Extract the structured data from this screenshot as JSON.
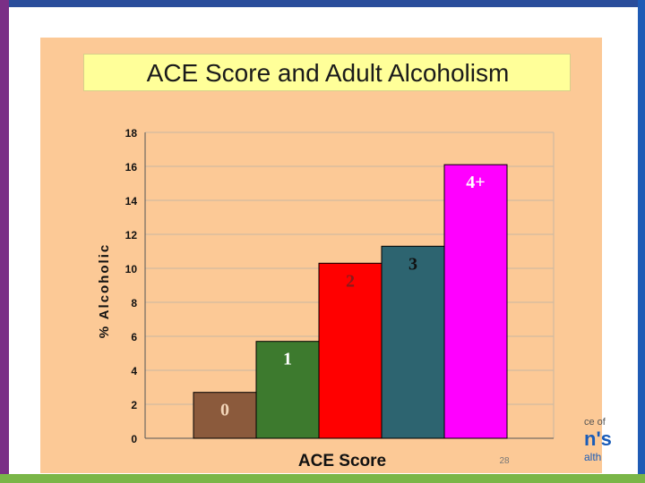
{
  "slide": {
    "page_number": "28",
    "logo_fragment": {
      "line1": "ce of",
      "line2": "n's",
      "line3": "alth"
    }
  },
  "chart_data": {
    "type": "bar",
    "title": "ACE Score and Adult Alcoholism",
    "xlabel": "ACE Score",
    "ylabel": "% Alcoholic",
    "categories": [
      "0",
      "1",
      "2",
      "3",
      "4+"
    ],
    "values": [
      2.7,
      5.7,
      10.3,
      11.3,
      16.1
    ],
    "colors": [
      "#8b5a3c",
      "#3d7a2e",
      "#ff0000",
      "#2d6470",
      "#ff00ff"
    ],
    "ylim": [
      0,
      18
    ],
    "yticks": [
      "0",
      "2",
      "4",
      "6",
      "8",
      "10",
      "12",
      "14",
      "16",
      "18"
    ],
    "grid": true,
    "legend": "none"
  }
}
